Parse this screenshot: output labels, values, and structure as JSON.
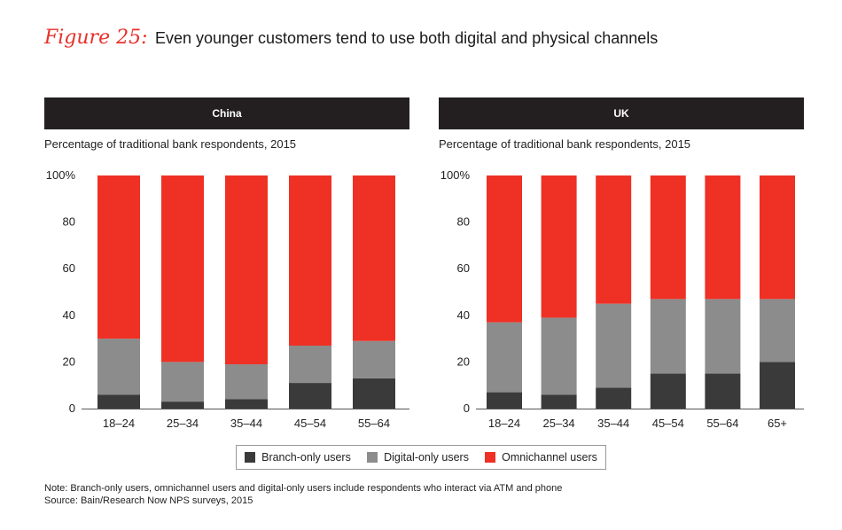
{
  "figure": {
    "label": "Figure 25:",
    "title": "Even younger customers tend to use both digital and physical channels"
  },
  "colors": {
    "branch": "#3a3a3a",
    "digital": "#8c8c8c",
    "omni": "#ee3124",
    "header_bg": "#231f20"
  },
  "legend": {
    "items": [
      {
        "key": "branch",
        "label": "Branch-only users"
      },
      {
        "key": "digital",
        "label": "Digital-only users"
      },
      {
        "key": "omni",
        "label": "Omnichannel users"
      }
    ]
  },
  "notes": {
    "note": "Note: Branch-only users, omnichannel users and digital-only users include respondents who interact via ATM and phone",
    "source": "Source: Bain/Research Now NPS surveys, 2015"
  },
  "chart_data": [
    {
      "type": "bar",
      "stacked": true,
      "title": "China",
      "subtitle": "Percentage of traditional bank respondents, 2015",
      "ylim": [
        0,
        100
      ],
      "yticks": [
        "0",
        "20",
        "40",
        "60",
        "80",
        "100%"
      ],
      "categories": [
        "18–24",
        "25–34",
        "35–44",
        "45–54",
        "55–64"
      ],
      "series": [
        {
          "name": "Branch-only users",
          "key": "branch",
          "values": [
            6,
            3,
            4,
            11,
            13
          ]
        },
        {
          "name": "Digital-only users",
          "key": "digital",
          "values": [
            24,
            17,
            15,
            16,
            16
          ]
        },
        {
          "name": "Omnichannel users",
          "key": "omni",
          "values": [
            70,
            80,
            81,
            73,
            71
          ]
        }
      ]
    },
    {
      "type": "bar",
      "stacked": true,
      "title": "UK",
      "subtitle": "Percentage of traditional bank respondents, 2015",
      "ylim": [
        0,
        100
      ],
      "yticks": [
        "0",
        "20",
        "40",
        "60",
        "80",
        "100%"
      ],
      "categories": [
        "18–24",
        "25–34",
        "35–44",
        "45–54",
        "55–64",
        "65+"
      ],
      "series": [
        {
          "name": "Branch-only users",
          "key": "branch",
          "values": [
            7,
            6,
            9,
            15,
            15,
            20
          ]
        },
        {
          "name": "Digital-only users",
          "key": "digital",
          "values": [
            30,
            33,
            36,
            32,
            32,
            27
          ]
        },
        {
          "name": "Omnichannel users",
          "key": "omni",
          "values": [
            63,
            61,
            55,
            53,
            53,
            53
          ]
        }
      ]
    }
  ]
}
